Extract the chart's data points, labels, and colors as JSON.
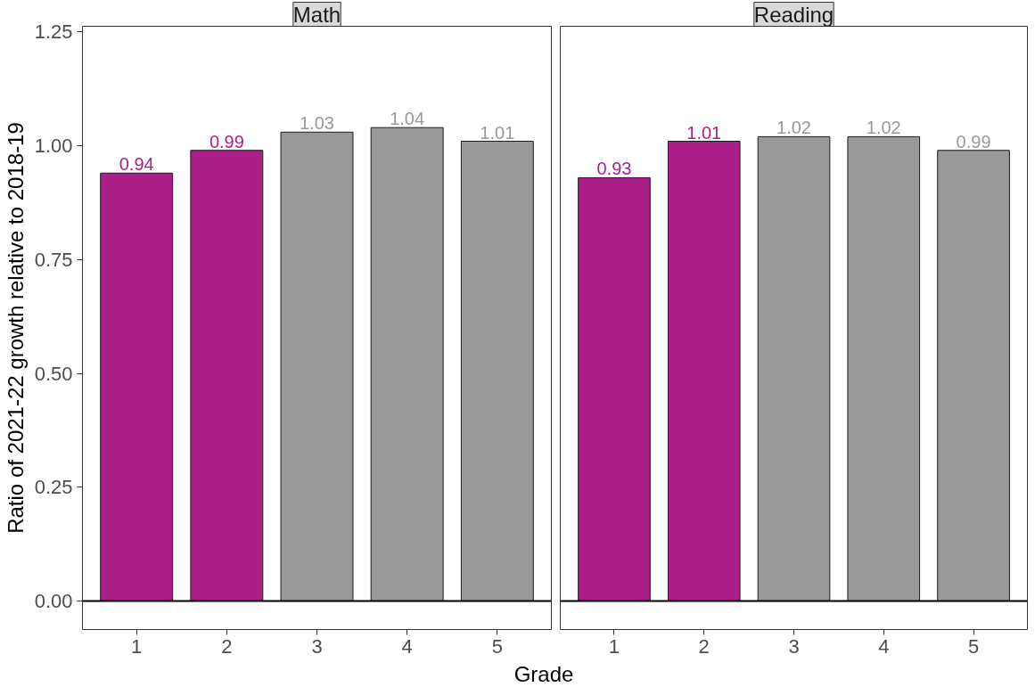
{
  "chart_data": [
    {
      "type": "bar",
      "title": "Math",
      "xlabel": "Grade",
      "ylabel": "Ratio of 2021-22 growth relative to 2018-19",
      "categories": [
        "1",
        "2",
        "3",
        "4",
        "5"
      ],
      "values": [
        0.94,
        0.99,
        1.03,
        1.04,
        1.01
      ],
      "colors": [
        "#ac1f8a",
        "#ac1f8a",
        "#999999",
        "#999999",
        "#999999"
      ],
      "ylim": [
        -0.0625,
        1.2625
      ],
      "yticks": [
        {
          "value": 0,
          "label": "0.00"
        },
        {
          "value": 0.25,
          "label": "0.25"
        },
        {
          "value": 0.5,
          "label": "0.50"
        },
        {
          "value": 0.75,
          "label": "0.75"
        },
        {
          "value": 1,
          "label": "1.00"
        },
        {
          "value": 1.25,
          "label": "1.25"
        }
      ],
      "data_labels": true,
      "grid": false,
      "ref_lines": [
        {
          "axis": "y",
          "value": 0,
          "color": "#000000"
        }
      ]
    },
    {
      "type": "bar",
      "title": "Reading",
      "categories": [
        "1",
        "2",
        "3",
        "4",
        "5"
      ],
      "values": [
        0.93,
        1.01,
        1.02,
        1.02,
        0.99
      ],
      "colors": [
        "#ac1f8a",
        "#ac1f8a",
        "#999999",
        "#999999",
        "#999999"
      ],
      "ylim": [
        -0.0625,
        1.2625
      ],
      "data_labels": true,
      "grid": false,
      "tick_labels": "x",
      "ref_lines": [
        {
          "axis": "y",
          "value": 0,
          "color": "#000000"
        }
      ]
    }
  ]
}
